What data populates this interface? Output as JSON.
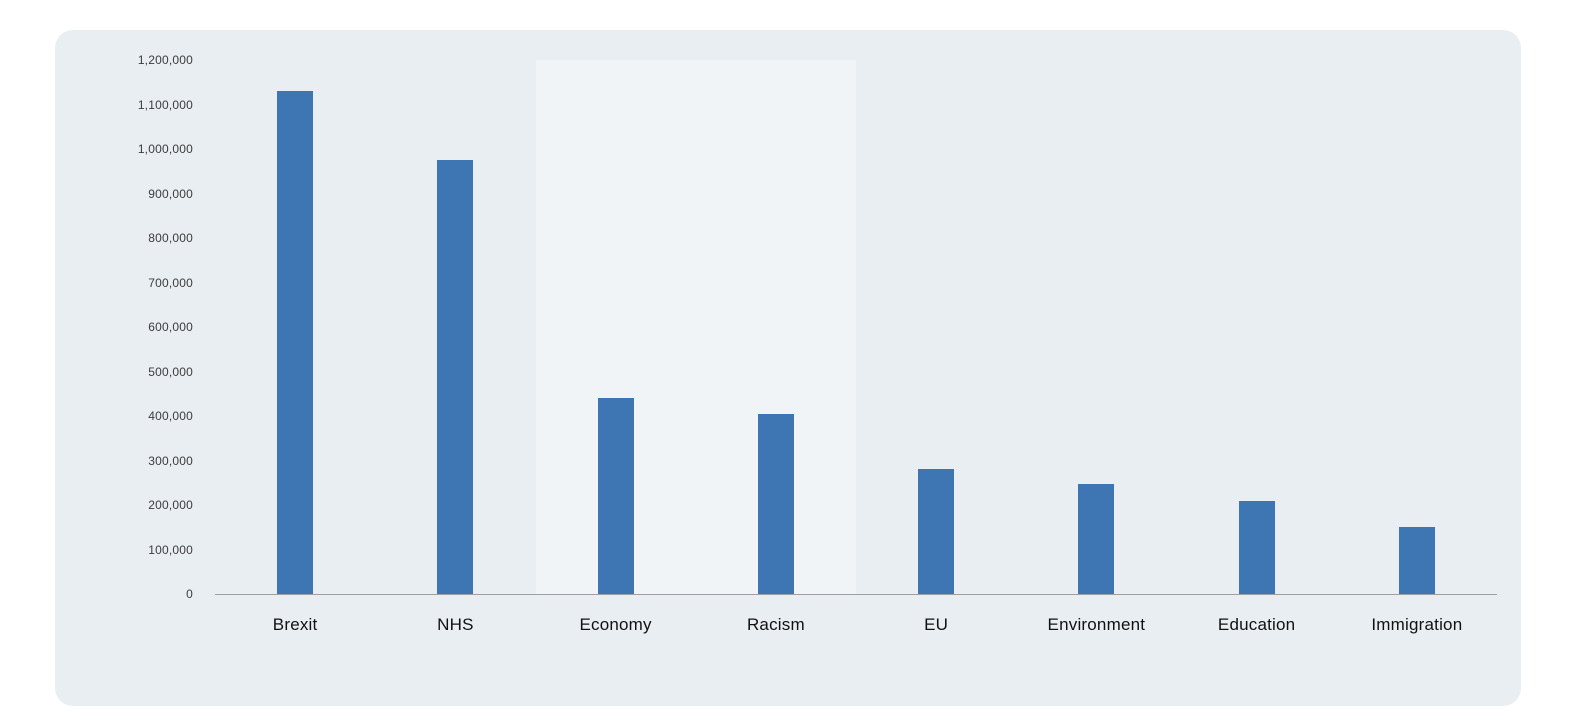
{
  "card": {
    "background_color": "#e9eef3",
    "page_background_color": "#ffffff"
  },
  "chart_data": {
    "type": "bar",
    "title": "",
    "xlabel": "",
    "ylabel": "",
    "categories": [
      "Brexit",
      "NHS",
      "Economy",
      "Racism",
      "EU",
      "Environment",
      "Education",
      "Immigration"
    ],
    "values": [
      1130000,
      975000,
      440000,
      405000,
      280000,
      248000,
      208000,
      150000
    ],
    "bar_color": "#3d76b2",
    "ylim": [
      0,
      1200000
    ],
    "ytick_step": 100000,
    "ytick_labels": [
      "0",
      "100,000",
      "200,000",
      "300,000",
      "400,000",
      "500,000",
      "600,000",
      "700,000",
      "800,000",
      "900,000",
      "1,000,000",
      "1,100,000",
      "1,200,000"
    ],
    "grid": "off",
    "legend": "none",
    "highlighted_column_indexes": [
      2,
      3
    ],
    "axis_line_color": "#9aa0a6",
    "tick_label_color": "#3c3c3c",
    "category_label_color": "#111111"
  }
}
